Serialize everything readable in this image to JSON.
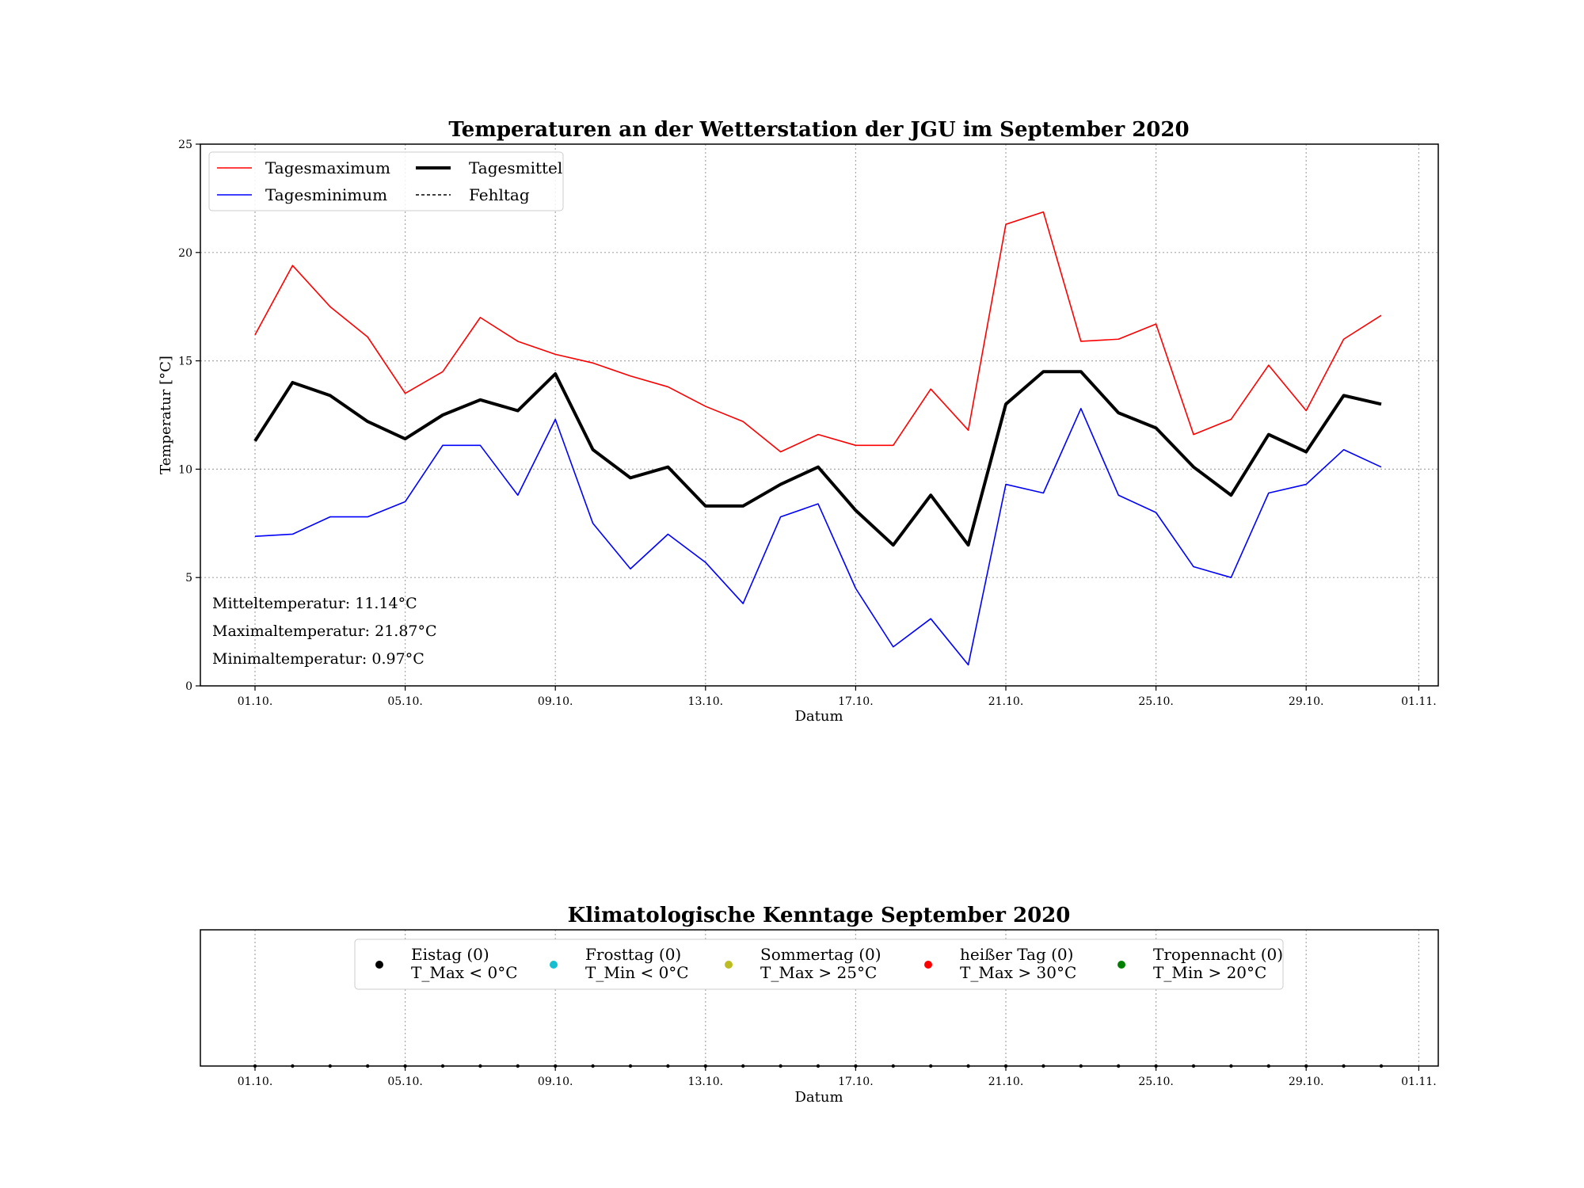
{
  "chart_data": [
    {
      "type": "line",
      "title": "Temperaturen an der Wetterstation der JGU im September 2020",
      "xlabel": "Datum",
      "ylabel": "Temperatur [°C]",
      "ylim": [
        0,
        25
      ],
      "yticks": [
        "0",
        "5",
        "10",
        "15",
        "20",
        "25"
      ],
      "xticks": [
        "01.10.",
        "05.10.",
        "09.10.",
        "13.10.",
        "17.10.",
        "21.10.",
        "25.10.",
        "29.10.",
        "01.11."
      ],
      "x_days": [
        1,
        2,
        3,
        4,
        5,
        6,
        7,
        8,
        9,
        10,
        11,
        12,
        13,
        14,
        15,
        16,
        17,
        18,
        19,
        20,
        21,
        22,
        23,
        24,
        25,
        26,
        27,
        28,
        29,
        30,
        31
      ],
      "grid": true,
      "legend_position": "top-left",
      "series": [
        {
          "name": "Tagesmaximum",
          "color": "#ff0000",
          "values": [
            16.2,
            19.4,
            17.5,
            16.1,
            13.5,
            14.5,
            17.0,
            15.9,
            15.3,
            14.9,
            14.3,
            13.8,
            12.9,
            12.2,
            10.8,
            11.6,
            11.1,
            11.1,
            13.7,
            11.8,
            21.3,
            21.87,
            15.9,
            16.0,
            16.7,
            11.6,
            12.3,
            14.8,
            12.7,
            16.0,
            17.1
          ]
        },
        {
          "name": "Tagesminimum",
          "color": "#0000ff",
          "values": [
            6.9,
            7.0,
            7.8,
            7.8,
            8.5,
            11.1,
            11.1,
            8.8,
            12.3,
            7.5,
            5.4,
            7.0,
            5.7,
            3.8,
            7.8,
            8.4,
            4.5,
            1.8,
            3.1,
            0.97,
            9.3,
            8.9,
            12.8,
            8.8,
            8.0,
            5.5,
            5.0,
            8.9,
            9.3,
            10.9,
            10.1
          ]
        },
        {
          "name": "Tagesmittel",
          "color": "#000000",
          "values": [
            11.3,
            14.0,
            13.4,
            12.2,
            11.4,
            12.5,
            13.2,
            12.7,
            14.4,
            10.9,
            9.6,
            10.1,
            8.3,
            8.3,
            9.3,
            10.1,
            8.1,
            6.5,
            8.8,
            6.5,
            13.0,
            14.5,
            14.5,
            12.6,
            11.9,
            10.1,
            8.8,
            11.6,
            10.8,
            13.4,
            13.0
          ]
        },
        {
          "name": "Fehltag",
          "color": "#000000",
          "style": "dashed",
          "values": []
        }
      ],
      "annotations": [
        {
          "label": "Mitteltemperatur:",
          "value": "11.14°C"
        },
        {
          "label": "Maximaltemperatur:",
          "value": "21.87°C"
        },
        {
          "label": "Minimaltemperatur:",
          "value": "0.97°C"
        }
      ]
    },
    {
      "type": "scatter",
      "title": "Klimatologische Kenntage September 2020",
      "xlabel": "Datum",
      "xticks": [
        "01.10.",
        "05.10.",
        "09.10.",
        "13.10.",
        "17.10.",
        "21.10.",
        "25.10.",
        "29.10.",
        "01.11."
      ],
      "grid": true,
      "legend_position": "top-center",
      "categories": [
        {
          "name": "Eistag (0)",
          "condition": "T_Max < 0°C",
          "count": 0,
          "color": "#000000"
        },
        {
          "name": "Frosttag (0)",
          "condition": "T_Min < 0°C",
          "count": 0,
          "color": "#17becf"
        },
        {
          "name": "Sommertag (0)",
          "condition": "T_Max > 25°C",
          "count": 0,
          "color": "#bcbd22"
        },
        {
          "name": "heißer Tag (0)",
          "condition": "T_Max > 30°C",
          "count": 0,
          "color": "#ff0000"
        },
        {
          "name": "Tropennacht (0)",
          "condition": "T_Min > 20°C",
          "count": 0,
          "color": "#008000"
        }
      ]
    }
  ]
}
